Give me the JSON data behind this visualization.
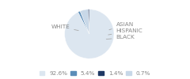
{
  "labels": [
    "WHITE",
    "ASIAN",
    "HISPANIC",
    "BLACK"
  ],
  "sizes": [
    92.6,
    1.4,
    5.4,
    0.7
  ],
  "colors": [
    "#dce6f0",
    "#5b8db8",
    "#c8d8e8",
    "#1f3864"
  ],
  "legend_labels": [
    "92.6%",
    "5.4%",
    "1.4%",
    "0.7%"
  ],
  "legend_colors": [
    "#dce6f0",
    "#5b8db8",
    "#1f3864",
    "#c8d8e8"
  ],
  "label_fontsize": 5.2,
  "legend_fontsize": 5.2,
  "text_color": "#888888"
}
